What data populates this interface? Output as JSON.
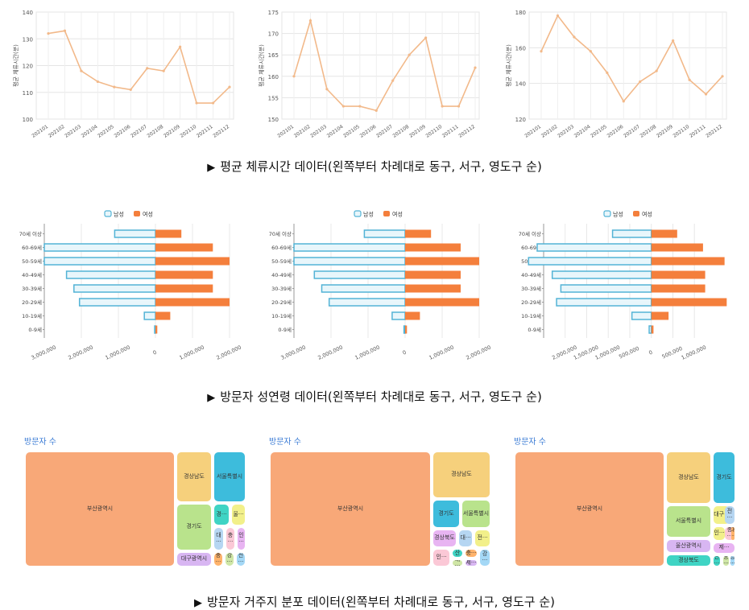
{
  "captions": {
    "line": "평균 체류시간 데이터(왼쪽부터 차례대로 동구, 서구, 영도구 순)",
    "pyramid": "방문자 성연령 데이터(왼쪽부터 차례대로 동구, 서구, 영도구 순)",
    "treemap": "방문자 거주지 분포 데이터(왼쪽부터 차례대로 동구, 서구, 영도구 순)",
    "marker": "▶"
  },
  "colors": {
    "line": "#f2b98a",
    "male_fill": "#e8f6fb",
    "male_stroke": "#53b3d6",
    "female": "#f47f3c",
    "treemap_title": "#3a7bd5"
  },
  "chart_data": [
    {
      "type": "line",
      "panel": "line-east",
      "ylabel": "평균 체류시간(분)",
      "x": [
        "202101",
        "202102",
        "202103",
        "202104",
        "202105",
        "202106",
        "202107",
        "202108",
        "202109",
        "202110",
        "202111",
        "202112"
      ],
      "y": [
        132,
        133,
        118,
        114,
        112,
        111,
        119,
        118,
        127,
        106,
        106,
        112
      ],
      "ylim": [
        100,
        140
      ],
      "yticks": [
        100,
        110,
        120,
        130,
        140
      ],
      "grid": true
    },
    {
      "type": "line",
      "panel": "line-west",
      "ylabel": "평균 체류시간(분)",
      "x": [
        "202101",
        "202102",
        "202103",
        "202104",
        "202105",
        "202106",
        "202107",
        "202108",
        "202109",
        "202110",
        "202111",
        "202112"
      ],
      "y": [
        160,
        173,
        157,
        153,
        153,
        152,
        159,
        165,
        169,
        153,
        153,
        162
      ],
      "ylim": [
        150,
        175
      ],
      "yticks": [
        150,
        155,
        160,
        165,
        170,
        175
      ],
      "grid": true
    },
    {
      "type": "line",
      "panel": "line-yeongdo",
      "ylabel": "평균 체류시간(분)",
      "x": [
        "202101",
        "202102",
        "202103",
        "202104",
        "202105",
        "202106",
        "202107",
        "202108",
        "202109",
        "202110",
        "202111",
        "202112"
      ],
      "y": [
        158,
        178,
        166,
        158,
        146,
        130,
        141,
        147,
        164,
        142,
        134,
        144
      ],
      "ylim": [
        120,
        180
      ],
      "yticks": [
        120,
        140,
        160,
        180
      ],
      "grid": true
    },
    {
      "type": "bar",
      "panel": "pyr-east",
      "orientation": "diverging",
      "categories": [
        "70세 이상",
        "60-69세",
        "50-59세",
        "40-49세",
        "30-39세",
        "20-29세",
        "10-19세",
        "0-9세"
      ],
      "series": [
        {
          "name": "남성",
          "values": [
            1100000,
            3000000,
            3000000,
            2400000,
            2200000,
            2050000,
            300000,
            20000
          ]
        },
        {
          "name": "여성",
          "values": [
            700000,
            1550000,
            2000000,
            1550000,
            1550000,
            2000000,
            400000,
            50000
          ]
        }
      ],
      "xlim": [
        -3000000,
        2000000
      ],
      "ticks": [
        -3000000,
        -2000000,
        -1000000,
        0,
        1000000,
        2000000
      ],
      "tick_labels": [
        "3,000,000",
        "2,000,000",
        "1,000,000",
        "0",
        "1,000,000",
        "2,000,000"
      ],
      "legend": "top-center"
    },
    {
      "type": "bar",
      "panel": "pyr-west",
      "orientation": "diverging",
      "categories": [
        "70세 이상",
        "60-69세",
        "50-59세",
        "40-49세",
        "30-39세",
        "20-29세",
        "10-19세",
        "0-9세"
      ],
      "series": [
        {
          "name": "남성",
          "values": [
            1100000,
            3000000,
            3000000,
            2450000,
            2250000,
            2050000,
            350000,
            30000
          ]
        },
        {
          "name": "여성",
          "values": [
            700000,
            1500000,
            2000000,
            1500000,
            1500000,
            2000000,
            400000,
            50000
          ]
        }
      ],
      "xlim": [
        -3000000,
        2000000
      ],
      "ticks": [
        -3000000,
        -2000000,
        -1000000,
        0,
        1000000,
        2000000
      ],
      "tick_labels": [
        "3,000,000",
        "2,000,000",
        "1,000,000",
        "0",
        "1,000,000",
        "2,000,000"
      ],
      "legend": "top-center"
    },
    {
      "type": "bar",
      "panel": "pyr-yeongdo",
      "orientation": "diverging",
      "categories": [
        "70세 이상",
        "60-69세",
        "50-59세",
        "40-49세",
        "30-39세",
        "20-29세",
        "10-19세",
        "0-9세"
      ],
      "series": [
        {
          "name": "남성",
          "values": [
            900000,
            2650000,
            2850000,
            2300000,
            2100000,
            2200000,
            450000,
            50000
          ]
        },
        {
          "name": "여성",
          "values": [
            600000,
            1200000,
            1700000,
            1250000,
            1250000,
            1750000,
            400000,
            50000
          ]
        }
      ],
      "xlim": [
        -2500000,
        1800000
      ],
      "ticks": [
        -2000000,
        -1500000,
        -1000000,
        -500000,
        0,
        500000,
        1000000
      ],
      "tick_labels": [
        "2,000,000",
        "1,500,000",
        "1,000,000",
        "500,000",
        "0",
        "500,000",
        "1,000,000"
      ],
      "legend": "top-center"
    }
  ],
  "legend": {
    "male": "남성",
    "female": "여성"
  },
  "treemaps": [
    {
      "title": "방문자 수",
      "boxes": [
        {
          "label": "부산광역시",
          "color": "#f8a878"
        },
        {
          "label": "경상남도",
          "color": "#f6d07c"
        },
        {
          "label": "서울특별시",
          "color": "#3dbcdc"
        },
        {
          "label": "경기도",
          "color": "#b9e38c"
        },
        {
          "label": "경···",
          "color": "#3fd4c4"
        },
        {
          "label": "울···",
          "color": "#f2f08a"
        },
        {
          "label": "대···",
          "color": "#b6d6f2"
        },
        {
          "label": "충···",
          "color": "#fbc8d6"
        },
        {
          "label": "인···",
          "color": "#e8b4f2"
        },
        {
          "label": "대구광역시",
          "color": "#d8b6f2"
        },
        {
          "label": "충···",
          "color": "#ffb36b"
        },
        {
          "label": "강···",
          "color": "#cfe6a6"
        },
        {
          "label": "전···",
          "color": "#a4d8f6"
        }
      ]
    },
    {
      "title": "방문자 수",
      "boxes": [
        {
          "label": "부산광역시",
          "color": "#f8a878"
        },
        {
          "label": "경상남도",
          "color": "#f6d07c"
        },
        {
          "label": "경기도",
          "color": "#3dbcdc"
        },
        {
          "label": "서울특별시",
          "color": "#b9e38c"
        },
        {
          "label": "경상북도",
          "color": "#e8b4f2"
        },
        {
          "label": "대···",
          "color": "#b6d6f2"
        },
        {
          "label": "전···",
          "color": "#f2f08a"
        },
        {
          "label": "인···",
          "color": "#fbc8d6"
        },
        {
          "label": "울산···",
          "color": "#3fd4c4"
        },
        {
          "label": "충···",
          "color": "#ffb36b"
        },
        {
          "label": "대···",
          "color": "#cfe6a6"
        },
        {
          "label": "제···",
          "color": "#d8b6f2"
        },
        {
          "label": "강···",
          "color": "#a4d8f6"
        }
      ]
    },
    {
      "title": "방문자 수",
      "boxes": [
        {
          "label": "부산광역시",
          "color": "#f8a878"
        },
        {
          "label": "경상남도",
          "color": "#f6d07c"
        },
        {
          "label": "경기도",
          "color": "#3dbcdc"
        },
        {
          "label": "서울특별시",
          "color": "#b9e38c"
        },
        {
          "label": "대구···",
          "color": "#f2f08a"
        },
        {
          "label": "전···",
          "color": "#b6d6f2"
        },
        {
          "label": "울산광역시",
          "color": "#d8b6f2"
        },
        {
          "label": "인···",
          "color": "#f2f08a"
        },
        {
          "label": "충···",
          "color": "#fbc8d6"
        },
        {
          "label": "대···",
          "color": "#ffb36b"
        },
        {
          "label": "경상북도",
          "color": "#3fd4c4"
        },
        {
          "label": "제···",
          "color": "#e8b4f2"
        },
        {
          "label": "전···",
          "color": "#3fd4c4"
        },
        {
          "label": "충···",
          "color": "#cfe6a6"
        },
        {
          "label": "강···",
          "color": "#a4d8f6"
        }
      ]
    }
  ]
}
